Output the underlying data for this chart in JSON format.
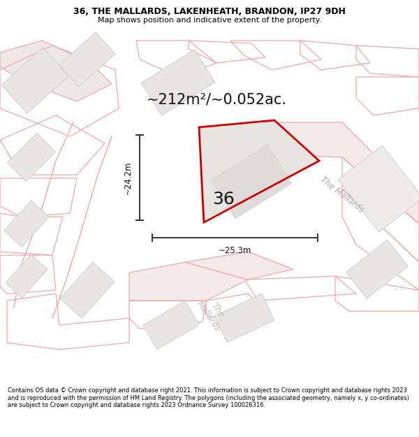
{
  "title_line1": "36, THE MALLARDS, LAKENHEATH, BRANDON, IP27 9DH",
  "title_line2": "Map shows position and indicative extent of the property.",
  "footer_text": "Contains OS data © Crown copyright and database right 2021. This information is subject to Crown copyright and database rights 2023 and is reproduced with the permission of HM Land Registry. The polygons (including the associated geometry, namely x, y co-ordinates) are subject to Crown copyright and database rights 2023 Ordnance Survey 100026316.",
  "area_label": "~212m²/~0.052ac.",
  "plot_number": "36",
  "dim_horizontal": "~25.3m",
  "dim_vertical": "~24.2m",
  "street_label_1": "The Mallards",
  "street_label_2": "The\nMallards",
  "map_bg": "#f7f4f2",
  "plot_edge_color": "#cc0000",
  "building_fill": "#e8e5e3",
  "building_edge": "#cccccc",
  "road_line_color": "#f0a8a8",
  "dim_line_color": "#333333"
}
